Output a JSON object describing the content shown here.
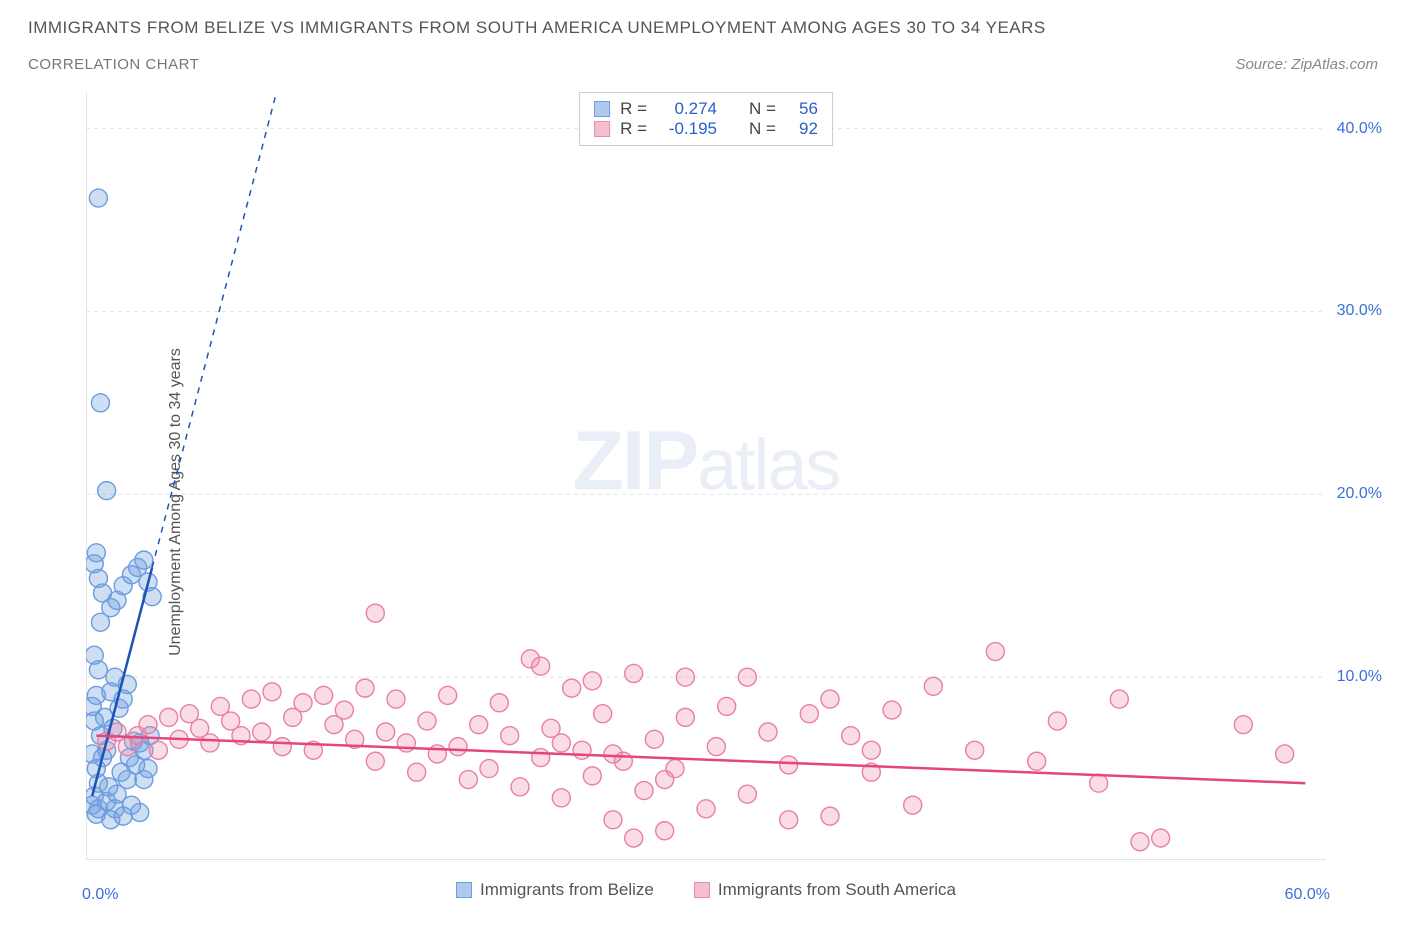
{
  "title": "IMMIGRANTS FROM BELIZE VS IMMIGRANTS FROM SOUTH AMERICA UNEMPLOYMENT AMONG AGES 30 TO 34 YEARS",
  "subtitle": "CORRELATION CHART",
  "source": "Source: ZipAtlas.com",
  "ylabel": "Unemployment Among Ages 30 to 34 years",
  "watermark_a": "ZIP",
  "watermark_b": "atlas",
  "chart": {
    "type": "scatter",
    "xlim": [
      0,
      60
    ],
    "ylim": [
      0,
      42
    ],
    "x_tick_start": "0.0%",
    "x_tick_end": "60.0%",
    "x_minor_ticks": [
      10,
      20,
      30,
      40,
      50
    ],
    "y_ticks": [
      {
        "v": 10,
        "label": "10.0%"
      },
      {
        "v": 20,
        "label": "20.0%"
      },
      {
        "v": 30,
        "label": "30.0%"
      },
      {
        "v": 40,
        "label": "40.0%"
      }
    ],
    "grid_color": "#e4e4e4",
    "axis_color": "#dadada",
    "background_color": "#ffffff",
    "marker_radius": 9,
    "marker_stroke_width": 1.4,
    "series": [
      {
        "name": "Immigrants from Belize",
        "fill": "rgba(116,160,222,0.35)",
        "stroke": "#6b9de0",
        "swatch_fill": "#aec8ee",
        "swatch_border": "#6b9de0",
        "r_label": "R =",
        "r_value": "0.274",
        "n_label": "N =",
        "n_value": "56",
        "trend": {
          "x1": 0.3,
          "y1": 3.5,
          "x2": 3.2,
          "y2": 16,
          "color": "#1f52b8",
          "dash_ext_x": 12,
          "dash_ext_y": 54
        },
        "points": [
          [
            0.3,
            3.0
          ],
          [
            0.4,
            3.5
          ],
          [
            0.6,
            4.2
          ],
          [
            0.5,
            5.0
          ],
          [
            0.8,
            5.6
          ],
          [
            1.0,
            6.0
          ],
          [
            0.7,
            6.8
          ],
          [
            1.3,
            7.2
          ],
          [
            0.9,
            7.8
          ],
          [
            1.6,
            8.3
          ],
          [
            1.8,
            8.8
          ],
          [
            1.2,
            9.2
          ],
          [
            2.0,
            9.6
          ],
          [
            1.4,
            10.0
          ],
          [
            2.3,
            6.5
          ],
          [
            0.5,
            2.5
          ],
          [
            0.6,
            2.8
          ],
          [
            1.0,
            3.2
          ],
          [
            1.5,
            3.6
          ],
          [
            1.1,
            4.0
          ],
          [
            2.0,
            4.4
          ],
          [
            1.7,
            4.8
          ],
          [
            2.4,
            5.2
          ],
          [
            2.1,
            5.6
          ],
          [
            2.8,
            6.0
          ],
          [
            2.6,
            6.4
          ],
          [
            3.1,
            6.8
          ],
          [
            0.4,
            7.6
          ],
          [
            0.3,
            8.4
          ],
          [
            0.5,
            9.0
          ],
          [
            0.6,
            10.4
          ],
          [
            0.4,
            11.2
          ],
          [
            0.7,
            13.0
          ],
          [
            1.2,
            13.8
          ],
          [
            1.5,
            14.2
          ],
          [
            0.8,
            14.6
          ],
          [
            1.8,
            15.0
          ],
          [
            2.2,
            15.6
          ],
          [
            2.5,
            16.0
          ],
          [
            2.8,
            16.4
          ],
          [
            3.0,
            15.2
          ],
          [
            3.2,
            14.4
          ],
          [
            0.5,
            16.8
          ],
          [
            0.4,
            16.2
          ],
          [
            0.6,
            15.4
          ],
          [
            1.0,
            20.2
          ],
          [
            0.7,
            25.0
          ],
          [
            0.6,
            36.2
          ],
          [
            1.2,
            2.2
          ],
          [
            1.4,
            2.8
          ],
          [
            1.8,
            2.4
          ],
          [
            2.2,
            3.0
          ],
          [
            2.6,
            2.6
          ],
          [
            2.8,
            4.4
          ],
          [
            3.0,
            5.0
          ],
          [
            0.3,
            5.8
          ]
        ]
      },
      {
        "name": "Immigrants from South America",
        "fill": "rgba(238,140,170,0.30)",
        "stroke": "#e97fa4",
        "swatch_fill": "#f5bfd0",
        "swatch_border": "#e58faf",
        "r_label": "R =",
        "r_value": "-0.195",
        "n_label": "N =",
        "n_value": "92",
        "trend": {
          "x1": 0.5,
          "y1": 6.8,
          "x2": 59,
          "y2": 4.2,
          "color": "#e5457e"
        },
        "points": [
          [
            1.0,
            6.5
          ],
          [
            1.5,
            7.0
          ],
          [
            2.0,
            6.2
          ],
          [
            2.5,
            6.8
          ],
          [
            3.0,
            7.4
          ],
          [
            3.5,
            6.0
          ],
          [
            4.0,
            7.8
          ],
          [
            4.5,
            6.6
          ],
          [
            5.0,
            8.0
          ],
          [
            5.5,
            7.2
          ],
          [
            6.0,
            6.4
          ],
          [
            6.5,
            8.4
          ],
          [
            7.0,
            7.6
          ],
          [
            7.5,
            6.8
          ],
          [
            8.0,
            8.8
          ],
          [
            8.5,
            7.0
          ],
          [
            9.0,
            9.2
          ],
          [
            9.5,
            6.2
          ],
          [
            10.0,
            7.8
          ],
          [
            10.5,
            8.6
          ],
          [
            11.0,
            6.0
          ],
          [
            11.5,
            9.0
          ],
          [
            12.0,
            7.4
          ],
          [
            12.5,
            8.2
          ],
          [
            13.0,
            6.6
          ],
          [
            13.5,
            9.4
          ],
          [
            14.0,
            5.4
          ],
          [
            14.5,
            7.0
          ],
          [
            15.0,
            8.8
          ],
          [
            15.5,
            6.4
          ],
          [
            16.0,
            4.8
          ],
          [
            16.5,
            7.6
          ],
          [
            17.0,
            5.8
          ],
          [
            17.5,
            9.0
          ],
          [
            18.0,
            6.2
          ],
          [
            18.5,
            4.4
          ],
          [
            19.0,
            7.4
          ],
          [
            19.5,
            5.0
          ],
          [
            20.0,
            8.6
          ],
          [
            20.5,
            6.8
          ],
          [
            21.0,
            4.0
          ],
          [
            21.5,
            11.0
          ],
          [
            22.0,
            5.6
          ],
          [
            22.5,
            7.2
          ],
          [
            23.0,
            3.4
          ],
          [
            23.5,
            9.4
          ],
          [
            24.0,
            6.0
          ],
          [
            24.5,
            4.6
          ],
          [
            25.0,
            8.0
          ],
          [
            25.5,
            2.2
          ],
          [
            26.0,
            5.4
          ],
          [
            26.5,
            10.2
          ],
          [
            27.0,
            3.8
          ],
          [
            27.5,
            6.6
          ],
          [
            28.0,
            1.6
          ],
          [
            28.5,
            5.0
          ],
          [
            29.0,
            7.8
          ],
          [
            22.0,
            10.6
          ],
          [
            14.0,
            13.5
          ],
          [
            23.0,
            6.4
          ],
          [
            24.5,
            9.8
          ],
          [
            25.5,
            5.8
          ],
          [
            26.5,
            1.2
          ],
          [
            28.0,
            4.4
          ],
          [
            29.0,
            10.0
          ],
          [
            30.0,
            2.8
          ],
          [
            30.5,
            6.2
          ],
          [
            31.0,
            8.4
          ],
          [
            32.0,
            3.6
          ],
          [
            33.0,
            7.0
          ],
          [
            34.0,
            5.2
          ],
          [
            35.0,
            8.0
          ],
          [
            36.0,
            2.4
          ],
          [
            37.0,
            6.8
          ],
          [
            38.0,
            4.8
          ],
          [
            39.0,
            8.2
          ],
          [
            40.0,
            3.0
          ],
          [
            41.0,
            9.5
          ],
          [
            43.0,
            6.0
          ],
          [
            44.0,
            11.4
          ],
          [
            46.0,
            5.4
          ],
          [
            47.0,
            7.6
          ],
          [
            49.0,
            4.2
          ],
          [
            50.0,
            8.8
          ],
          [
            51.0,
            1.0
          ],
          [
            52.0,
            1.2
          ],
          [
            56.0,
            7.4
          ],
          [
            58.0,
            5.8
          ],
          [
            32.0,
            10.0
          ],
          [
            34.0,
            2.2
          ],
          [
            36.0,
            8.8
          ],
          [
            38.0,
            6.0
          ]
        ]
      }
    ]
  }
}
